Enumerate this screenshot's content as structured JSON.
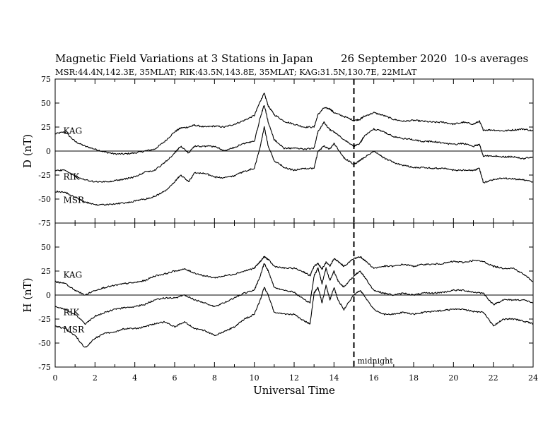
{
  "header": {
    "title": "Magnetic Field Variations at 3 Stations in Japan",
    "date": "26 September 2020",
    "averaging": "10-s averages",
    "stations_line": "MSR:44.4N,142.3E, 35MLAT;  RIK:43.5N,143.8E, 35MLAT;  KAG:31.5N,130.7E, 22MLAT"
  },
  "chart_data": [
    {
      "type": "line",
      "panel": "D",
      "ylabel": "D (nT)",
      "xlabel": "Universal Time",
      "xlim": [
        0,
        24
      ],
      "ylim": [
        -75,
        75
      ],
      "x_ticks": [
        0,
        2,
        4,
        6,
        8,
        10,
        12,
        14,
        16,
        18,
        20,
        22,
        24
      ],
      "y_ticks": [
        75,
        50,
        25,
        0,
        -25,
        -50,
        -75
      ],
      "midline_at_zero": true,
      "vline": {
        "x": 15,
        "style": "dashed",
        "label": "midnight"
      },
      "series": [
        {
          "name": "KAG",
          "label_at": [
            0.3,
            21
          ],
          "x": [
            0,
            0.5,
            1,
            1.5,
            2,
            2.5,
            3,
            3.5,
            4,
            4.5,
            5,
            5.5,
            6,
            6.3,
            6.7,
            7,
            7.5,
            8,
            8.5,
            9,
            9.5,
            10,
            10.3,
            10.5,
            10.7,
            11,
            11.5,
            12,
            12.5,
            13,
            13.2,
            13.5,
            13.8,
            14,
            14.5,
            15,
            15.3,
            15.5,
            16,
            16.5,
            17,
            17.5,
            18,
            18.5,
            19,
            19.5,
            20,
            20.5,
            21,
            21.3,
            21.5,
            22,
            22.5,
            23,
            23.5,
            24
          ],
          "y": [
            18,
            20,
            10,
            5,
            2,
            -1,
            -3,
            -3,
            -2,
            0,
            2,
            10,
            20,
            24,
            25,
            27,
            25,
            26,
            25,
            28,
            32,
            37,
            52,
            60,
            47,
            38,
            31,
            28,
            25,
            25,
            38,
            45,
            44,
            40,
            36,
            32,
            33,
            36,
            40,
            37,
            33,
            31,
            32,
            31,
            30,
            30,
            28,
            30,
            28,
            31,
            22,
            22,
            21,
            22,
            23,
            21
          ]
        },
        {
          "name": "RIK",
          "label_at": [
            0.3,
            -27
          ],
          "x": [
            0,
            0.5,
            1,
            1.5,
            2,
            2.5,
            3,
            3.5,
            4,
            4.5,
            5,
            5.5,
            6,
            6.3,
            6.7,
            7,
            7.5,
            8,
            8.5,
            9,
            9.5,
            10,
            10.3,
            10.5,
            10.7,
            11,
            11.5,
            12,
            12.5,
            13,
            13.2,
            13.5,
            13.8,
            14,
            14.5,
            15,
            15.3,
            15.5,
            16,
            16.5,
            17,
            17.5,
            18,
            18.5,
            19,
            19.5,
            20,
            20.5,
            21,
            21.3,
            21.5,
            22,
            22.5,
            23,
            23.5,
            24
          ],
          "y": [
            -20,
            -20,
            -26,
            -30,
            -32,
            -32,
            -31,
            -29,
            -27,
            -22,
            -20,
            -12,
            -2,
            5,
            -2,
            5,
            5,
            5,
            0,
            4,
            8,
            10,
            35,
            48,
            30,
            12,
            3,
            3,
            2,
            3,
            20,
            30,
            22,
            20,
            12,
            5,
            8,
            15,
            23,
            20,
            15,
            13,
            12,
            10,
            10,
            8,
            7,
            8,
            5,
            7,
            -5,
            -5,
            -6,
            -6,
            -8,
            -6
          ]
        },
        {
          "name": "MSR",
          "label_at": [
            0.3,
            -51
          ],
          "x": [
            0,
            0.5,
            1,
            1.5,
            2,
            2.5,
            3,
            3.5,
            4,
            4.5,
            5,
            5.5,
            6,
            6.3,
            6.7,
            7,
            7.5,
            8,
            8.5,
            9,
            9.5,
            10,
            10.3,
            10.5,
            10.7,
            11,
            11.5,
            12,
            12.5,
            13,
            13.2,
            13.5,
            13.8,
            14,
            14.5,
            15,
            15.3,
            15.5,
            16,
            16.5,
            17,
            17.5,
            18,
            18.5,
            19,
            19.5,
            20,
            20.5,
            21,
            21.3,
            21.5,
            22,
            22.5,
            23,
            23.5,
            24
          ],
          "y": [
            -42,
            -43,
            -48,
            -53,
            -56,
            -56,
            -55,
            -54,
            -52,
            -50,
            -47,
            -42,
            -32,
            -25,
            -32,
            -23,
            -23,
            -27,
            -28,
            -26,
            -21,
            -18,
            5,
            25,
            5,
            -10,
            -17,
            -20,
            -18,
            -18,
            0,
            5,
            2,
            8,
            -7,
            -14,
            -10,
            -7,
            0,
            -7,
            -12,
            -15,
            -17,
            -17,
            -18,
            -18,
            -20,
            -20,
            -20,
            -18,
            -33,
            -30,
            -28,
            -29,
            -30,
            -32
          ]
        }
      ]
    },
    {
      "type": "line",
      "panel": "H",
      "ylabel": "H (nT)",
      "xlabel": "Universal Time",
      "xlim": [
        0,
        24
      ],
      "ylim": [
        -75,
        75
      ],
      "x_ticks": [
        0,
        2,
        4,
        6,
        8,
        10,
        12,
        14,
        16,
        18,
        20,
        22,
        24
      ],
      "y_ticks": [
        75,
        50,
        25,
        0,
        -25,
        -50,
        -75
      ],
      "midline_at_zero": true,
      "vline": {
        "x": 15,
        "style": "dashed",
        "label": "midnight"
      },
      "series": [
        {
          "name": "KAG",
          "label_at": [
            0.3,
            21
          ],
          "x": [
            0,
            0.5,
            1,
            1.5,
            2,
            2.5,
            3,
            3.5,
            4,
            4.5,
            5,
            5.5,
            6,
            6.5,
            7,
            7.5,
            8,
            8.5,
            9,
            9.5,
            10,
            10.3,
            10.5,
            10.7,
            11,
            11.5,
            12,
            12.5,
            12.8,
            13,
            13.2,
            13.4,
            13.6,
            13.8,
            14,
            14.2,
            14.5,
            15,
            15.3,
            15.5,
            16,
            16.5,
            17,
            17.5,
            18,
            18.5,
            19,
            19.5,
            20,
            20.5,
            21,
            21.5,
            22,
            22.5,
            23,
            23.5,
            24
          ],
          "y": [
            14,
            12,
            5,
            0,
            5,
            8,
            10,
            12,
            13,
            15,
            20,
            22,
            25,
            27,
            23,
            20,
            18,
            20,
            22,
            25,
            28,
            35,
            40,
            37,
            30,
            28,
            28,
            24,
            20,
            30,
            33,
            27,
            34,
            30,
            38,
            35,
            30,
            38,
            40,
            37,
            28,
            30,
            30,
            32,
            30,
            32,
            32,
            33,
            35,
            34,
            36,
            35,
            30,
            28,
            28,
            22,
            14
          ]
        },
        {
          "name": "RIK",
          "label_at": [
            0.3,
            -18
          ],
          "x": [
            0,
            0.5,
            1,
            1.5,
            2,
            2.5,
            3,
            3.5,
            4,
            4.5,
            5,
            5.5,
            6,
            6.5,
            7,
            7.5,
            8,
            8.5,
            9,
            9.5,
            10,
            10.3,
            10.5,
            10.7,
            11,
            11.5,
            12,
            12.5,
            12.8,
            13,
            13.2,
            13.4,
            13.6,
            13.8,
            14,
            14.2,
            14.5,
            15,
            15.3,
            15.5,
            16,
            16.5,
            17,
            17.5,
            18,
            18.5,
            19,
            19.5,
            20,
            20.5,
            21,
            21.5,
            22,
            22.5,
            23,
            23.5,
            24
          ],
          "y": [
            -12,
            -15,
            -20,
            -30,
            -22,
            -18,
            -15,
            -13,
            -12,
            -10,
            -5,
            -3,
            -3,
            0,
            -5,
            -8,
            -12,
            -8,
            -3,
            2,
            5,
            20,
            33,
            25,
            8,
            5,
            3,
            -5,
            -8,
            20,
            28,
            12,
            28,
            15,
            25,
            15,
            8,
            20,
            25,
            20,
            5,
            2,
            0,
            2,
            0,
            2,
            2,
            3,
            5,
            5,
            3,
            2,
            -10,
            -5,
            -5,
            -5,
            -8
          ]
        },
        {
          "name": "MSR",
          "label_at": [
            0.3,
            -36
          ],
          "x": [
            0,
            0.5,
            1,
            1.5,
            2,
            2.5,
            3,
            3.5,
            4,
            4.5,
            5,
            5.5,
            6,
            6.5,
            7,
            7.5,
            8,
            8.5,
            9,
            9.5,
            10,
            10.3,
            10.5,
            10.7,
            11,
            11.5,
            12,
            12.5,
            12.8,
            13,
            13.2,
            13.4,
            13.6,
            13.8,
            14,
            14.2,
            14.5,
            15,
            15.3,
            15.5,
            16,
            16.5,
            17,
            17.5,
            18,
            18.5,
            19,
            19.5,
            20,
            20.5,
            21,
            21.5,
            22,
            22.5,
            23,
            23.5,
            24
          ],
          "y": [
            -32,
            -35,
            -42,
            -55,
            -45,
            -40,
            -38,
            -35,
            -35,
            -33,
            -30,
            -28,
            -33,
            -28,
            -35,
            -37,
            -42,
            -38,
            -33,
            -25,
            -20,
            -5,
            8,
            0,
            -18,
            -20,
            -20,
            -27,
            -30,
            2,
            8,
            -8,
            10,
            -5,
            8,
            -5,
            -15,
            0,
            5,
            0,
            -15,
            -20,
            -20,
            -18,
            -20,
            -18,
            -17,
            -16,
            -15,
            -15,
            -17,
            -18,
            -32,
            -25,
            -25,
            -27,
            -30
          ]
        }
      ]
    }
  ]
}
